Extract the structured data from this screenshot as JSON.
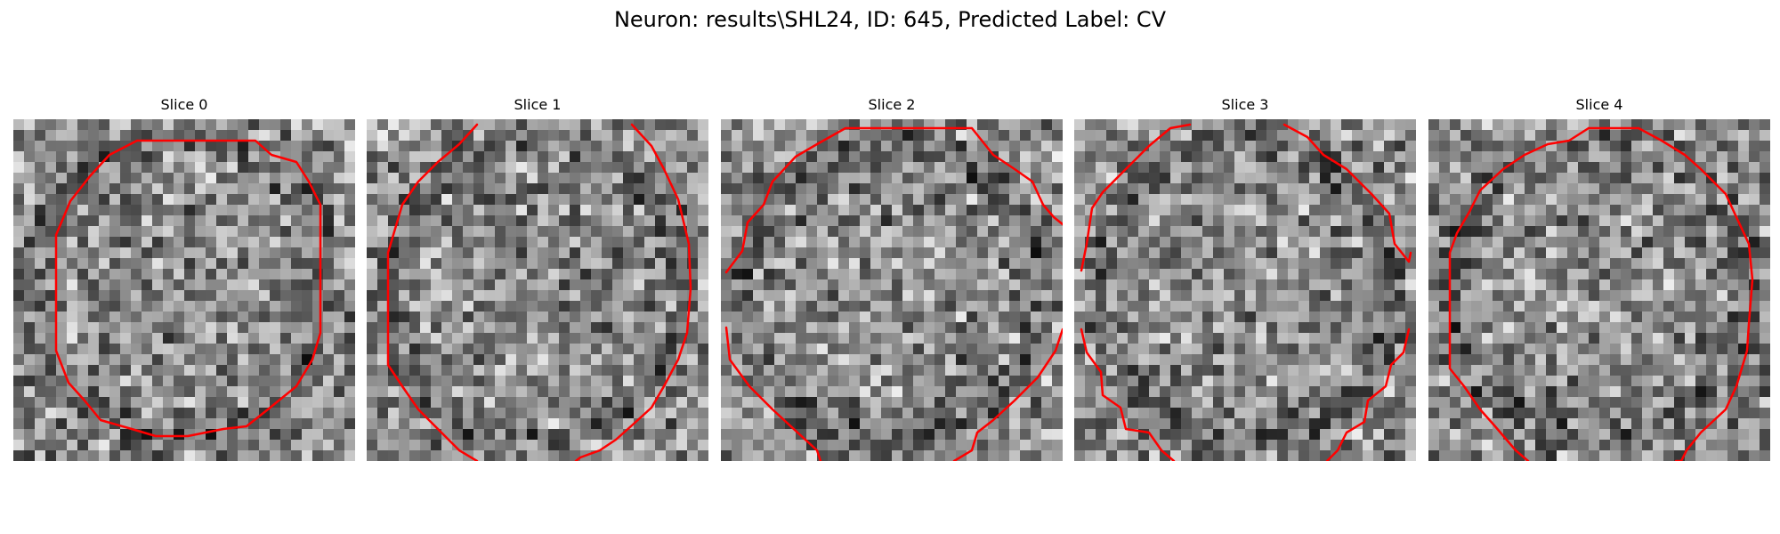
{
  "figure": {
    "title": "Neuron: results\\SHL24, ID: 645, Predicted Label: CV"
  },
  "colors": {
    "contour": "#ff0000",
    "background": "#ffffff"
  },
  "panels": [
    {
      "title": "Slice 0"
    },
    {
      "title": "Slice 1"
    },
    {
      "title": "Slice 2"
    },
    {
      "title": "Slice 3"
    },
    {
      "title": "Slice 4"
    }
  ]
}
